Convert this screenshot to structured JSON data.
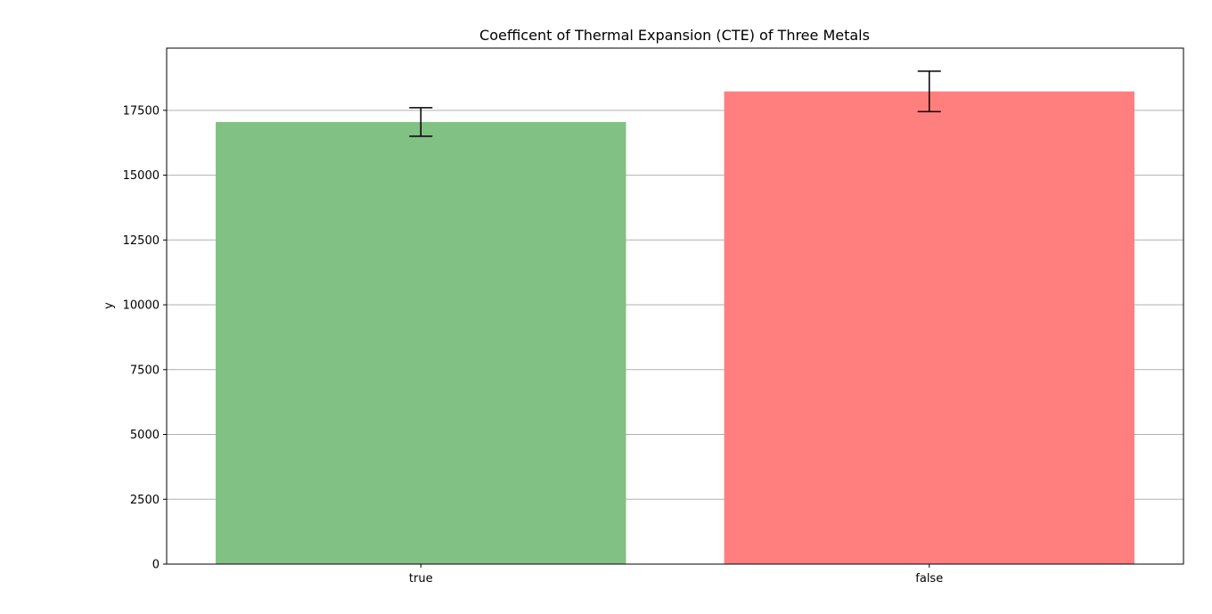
{
  "chart_data": {
    "type": "bar",
    "title": "Coefficent of Thermal Expansion (CTE) of Three Metals",
    "xlabel": "",
    "ylabel": "y",
    "categories": [
      "true",
      "false"
    ],
    "values": [
      17050,
      18230
    ],
    "errors": [
      550,
      780
    ],
    "colors": [
      "#81c184",
      "#ff7f7f"
    ],
    "ylim": [
      0,
      19900
    ],
    "yticks": [
      0,
      2500,
      5000,
      7500,
      10000,
      12500,
      15000,
      17500
    ],
    "ytick_labels": [
      "0",
      "2500",
      "5000",
      "7500",
      "10000",
      "12500",
      "15000",
      "17500"
    ],
    "grid": "y",
    "legend": "none"
  }
}
